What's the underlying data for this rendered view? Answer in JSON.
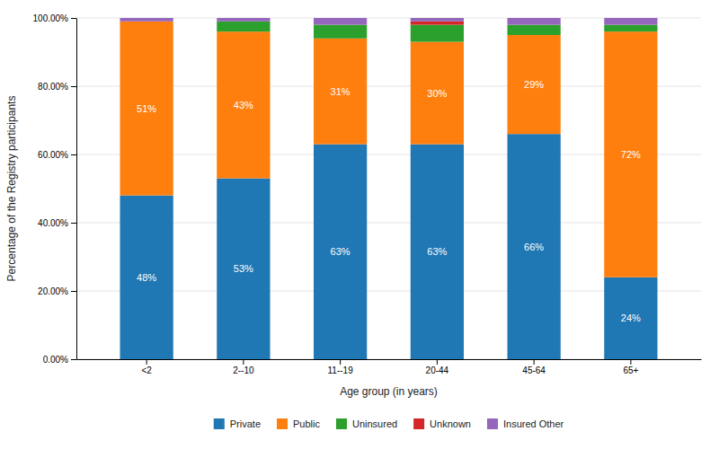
{
  "chart_data": {
    "type": "bar",
    "stacked": true,
    "data_labels": true,
    "grid": true,
    "legend": "bottom",
    "xlabel": "Age group (in years)",
    "ylabel": "Percentage of the Registry participants",
    "categories": [
      "<2",
      "2--10",
      "11--19",
      "20-44",
      "45-64",
      "65+"
    ],
    "series": [
      {
        "name": "Private",
        "values": [
          48,
          53,
          63,
          63,
          66,
          24
        ],
        "value_labels": [
          "48%",
          "53%",
          "63%",
          "63%",
          "66%",
          "24%"
        ]
      },
      {
        "name": "Public",
        "values": [
          51,
          43,
          31,
          30,
          29,
          72
        ],
        "value_labels": [
          "51%",
          "43%",
          "31%",
          "30%",
          "29%",
          "72%"
        ]
      },
      {
        "name": "Uninsured",
        "values": [
          0,
          3,
          4,
          5,
          3,
          2
        ]
      },
      {
        "name": "Unknown",
        "values": [
          0,
          0,
          0,
          1,
          0,
          0
        ]
      },
      {
        "name": "Insured Other",
        "values": [
          1,
          1,
          2,
          1,
          2,
          2
        ]
      }
    ],
    "ylim": [
      0,
      100
    ],
    "yticks": [
      {
        "value": 0,
        "label": "0.00%"
      },
      {
        "value": 20,
        "label": "20.00%"
      },
      {
        "value": 40,
        "label": "40.00%"
      },
      {
        "value": 60,
        "label": "60.00%"
      },
      {
        "value": 80,
        "label": "80.00%"
      },
      {
        "value": 100,
        "label": "100.00%"
      }
    ]
  }
}
